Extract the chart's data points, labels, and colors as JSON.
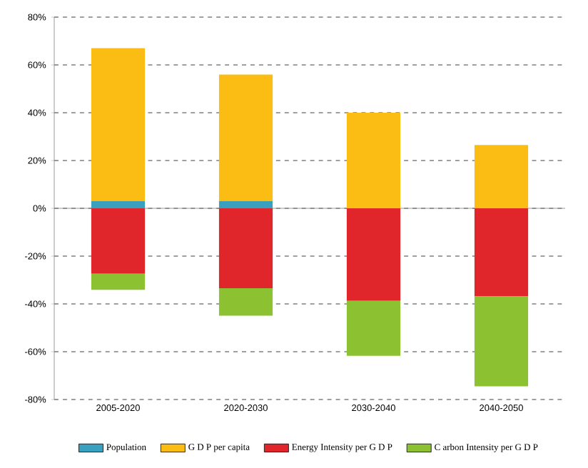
{
  "chart_data": {
    "type": "bar",
    "stacked": true,
    "categories": [
      "2005-2020",
      "2020-2030",
      "2030-2040",
      "2040-2050"
    ],
    "series": [
      {
        "name": "Population",
        "color": "#3aa0c0",
        "values": [
          3,
          3,
          0,
          0
        ]
      },
      {
        "name": "G D P per capita",
        "color": "#fbbd14",
        "values": [
          64,
          53,
          40,
          26.5
        ]
      },
      {
        "name": "Energy Intensity per G D P",
        "color": "#e0262a",
        "values": [
          -27.4,
          -33.4,
          -38.7,
          -36.9
        ]
      },
      {
        "name": "C arbon Intensity per G D P",
        "color": "#8cc232",
        "values": [
          -6.7,
          -11.5,
          -23,
          -37.6
        ]
      }
    ],
    "ylim": [
      -80,
      80
    ],
    "yticks": [
      {
        "value": -80,
        "label": "-80%"
      },
      {
        "value": -60,
        "label": "-60%"
      },
      {
        "value": -40,
        "label": "-40%"
      },
      {
        "value": -20,
        "label": "-20%"
      },
      {
        "value": 0,
        "label": "0%"
      },
      {
        "value": 20,
        "label": "20%"
      },
      {
        "value": 40,
        "label": "40%"
      },
      {
        "value": 60,
        "label": "60%"
      },
      {
        "value": 80,
        "label": "80%"
      }
    ],
    "grid": "y",
    "legend": "bottom"
  }
}
